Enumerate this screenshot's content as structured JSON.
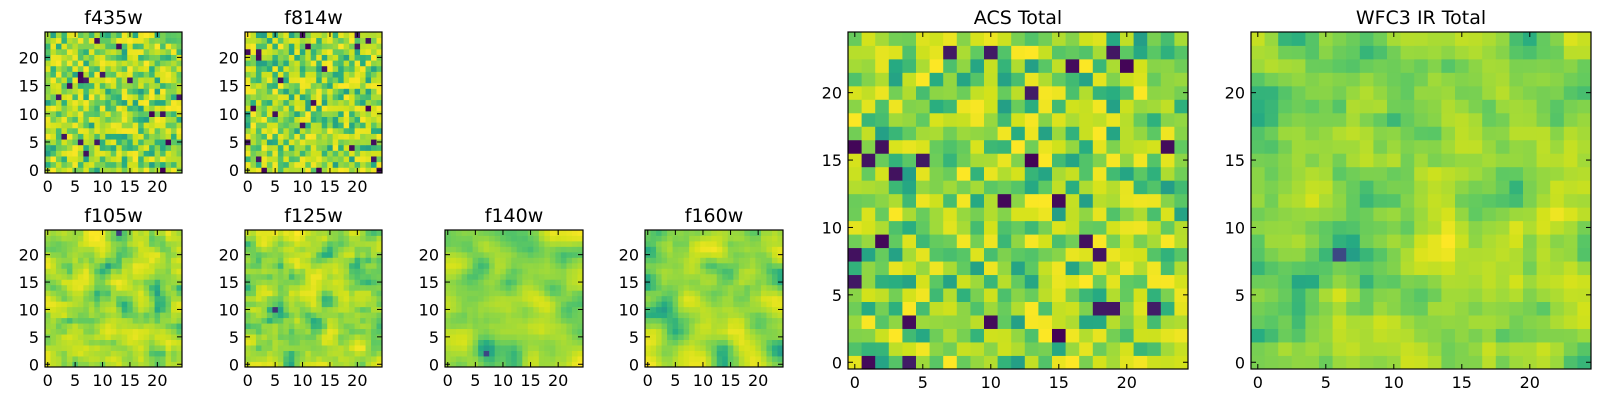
{
  "colormap": "viridis",
  "colors": {
    "viridis": [
      "#440154",
      "#3b528b",
      "#21918c",
      "#27ad81",
      "#5ec962",
      "#9bd93c",
      "#d2e21b",
      "#fde725"
    ],
    "axes": "#000000",
    "background": "#ffffff"
  },
  "chart_data": [
    {
      "id": "f435w",
      "type": "heatmap",
      "title": "f435w",
      "grid_size": 25,
      "xlim": [
        0,
        24
      ],
      "ylim": [
        0,
        24
      ],
      "xticks": [
        0,
        5,
        10,
        15,
        20
      ],
      "yticks": [
        0,
        5,
        10,
        15,
        20
      ],
      "x_tick_labels": [
        "0",
        "5",
        "10",
        "15",
        "20"
      ],
      "y_tick_labels": [
        "0",
        "5",
        "10",
        "15",
        "20"
      ],
      "value_range": [
        0,
        1
      ],
      "texture": "noise",
      "smoothing": 0,
      "notes": "25x25 pixel image, mostly green-yellow with scattered dark purple pixels"
    },
    {
      "id": "f814w",
      "type": "heatmap",
      "title": "f814w",
      "grid_size": 25,
      "xlim": [
        0,
        24
      ],
      "ylim": [
        0,
        24
      ],
      "xticks": [
        0,
        5,
        10,
        15,
        20
      ],
      "yticks": [
        0,
        5,
        10,
        15,
        20
      ],
      "x_tick_labels": [
        "0",
        "5",
        "10",
        "15",
        "20"
      ],
      "y_tick_labels": [
        "0",
        "5",
        "10",
        "15",
        "20"
      ],
      "value_range": [
        0,
        1
      ],
      "texture": "noise",
      "smoothing": 0
    },
    {
      "id": "f105w",
      "type": "heatmap",
      "title": "f105w",
      "grid_size": 25,
      "xlim": [
        0,
        24
      ],
      "ylim": [
        0,
        24
      ],
      "xticks": [
        0,
        5,
        10,
        15,
        20
      ],
      "yticks": [
        0,
        5,
        10,
        15,
        20
      ],
      "x_tick_labels": [
        "0",
        "5",
        "10",
        "15",
        "20"
      ],
      "y_tick_labels": [
        "0",
        "5",
        "10",
        "15",
        "20"
      ],
      "value_range": [
        0,
        1
      ],
      "texture": "smooth",
      "smoothing": 1
    },
    {
      "id": "f125w",
      "type": "heatmap",
      "title": "f125w",
      "grid_size": 25,
      "xlim": [
        0,
        24
      ],
      "ylim": [
        0,
        24
      ],
      "xticks": [
        0,
        5,
        10,
        15,
        20
      ],
      "yticks": [
        0,
        5,
        10,
        15,
        20
      ],
      "x_tick_labels": [
        "0",
        "5",
        "10",
        "15",
        "20"
      ],
      "y_tick_labels": [
        "0",
        "5",
        "10",
        "15",
        "20"
      ],
      "value_range": [
        0,
        1
      ],
      "texture": "smooth",
      "smoothing": 1
    },
    {
      "id": "f140w",
      "type": "heatmap",
      "title": "f140w",
      "grid_size": 25,
      "xlim": [
        0,
        24
      ],
      "ylim": [
        0,
        24
      ],
      "xticks": [
        0,
        5,
        10,
        15,
        20
      ],
      "yticks": [
        0,
        5,
        10,
        15,
        20
      ],
      "x_tick_labels": [
        "0",
        "5",
        "10",
        "15",
        "20"
      ],
      "y_tick_labels": [
        "0",
        "5",
        "10",
        "15",
        "20"
      ],
      "value_range": [
        0,
        1
      ],
      "texture": "smooth",
      "smoothing": 2
    },
    {
      "id": "f160w",
      "type": "heatmap",
      "title": "f160w",
      "grid_size": 25,
      "xlim": [
        0,
        24
      ],
      "ylim": [
        0,
        24
      ],
      "xticks": [
        0,
        5,
        10,
        15,
        20
      ],
      "yticks": [
        0,
        5,
        10,
        15,
        20
      ],
      "x_tick_labels": [
        "0",
        "5",
        "10",
        "15",
        "20"
      ],
      "y_tick_labels": [
        "0",
        "5",
        "10",
        "15",
        "20"
      ],
      "value_range": [
        0,
        1
      ],
      "texture": "smooth",
      "smoothing": 2
    },
    {
      "id": "acs-total",
      "type": "heatmap",
      "title": "ACS Total",
      "grid_size": 25,
      "xlim": [
        0,
        24
      ],
      "ylim": [
        0,
        24
      ],
      "xticks": [
        0,
        5,
        10,
        15,
        20
      ],
      "yticks": [
        0,
        5,
        10,
        15,
        20
      ],
      "x_tick_labels": [
        "0",
        "5",
        "10",
        "15",
        "20"
      ],
      "y_tick_labels": [
        "0",
        "5",
        "10",
        "15",
        "20"
      ],
      "value_range": [
        0,
        1
      ],
      "texture": "noise",
      "smoothing": 0
    },
    {
      "id": "wfc3-ir-total",
      "type": "heatmap",
      "title": "WFC3 IR Total",
      "grid_size": 25,
      "xlim": [
        0,
        24
      ],
      "ylim": [
        0,
        24
      ],
      "xticks": [
        0,
        5,
        10,
        15,
        20
      ],
      "yticks": [
        0,
        5,
        10,
        15,
        20
      ],
      "x_tick_labels": [
        "0",
        "5",
        "10",
        "15",
        "20"
      ],
      "y_tick_labels": [
        "0",
        "5",
        "10",
        "15",
        "20"
      ],
      "value_range": [
        0,
        1
      ],
      "texture": "smooth",
      "smoothing": 1
    }
  ]
}
